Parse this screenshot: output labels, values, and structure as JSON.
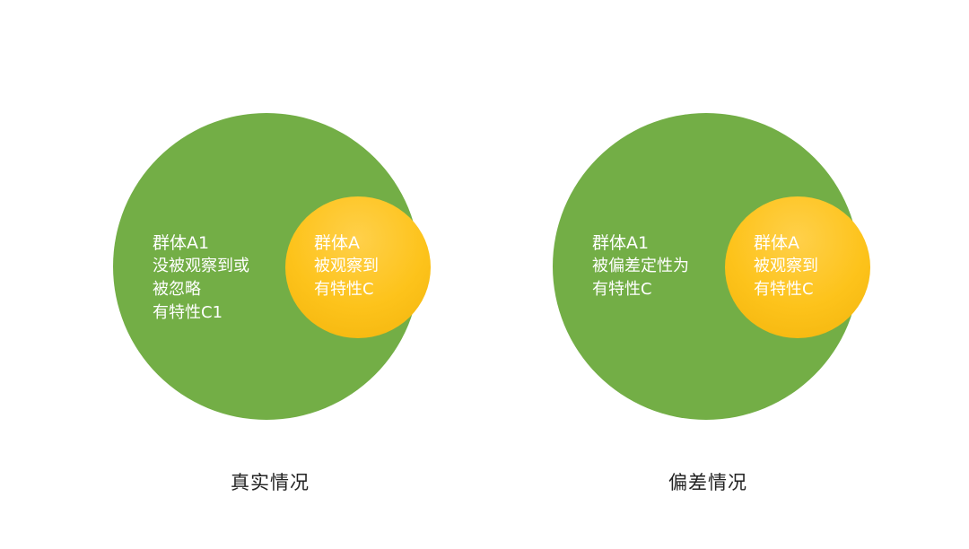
{
  "colors": {
    "outer_group": "#73ae46",
    "inner_group": "#fdc31b",
    "label_text": "#ffffff",
    "caption_text": "#222222"
  },
  "diagrams": [
    {
      "caption": "真实情况",
      "outer_label": [
        "群体A1",
        "没被观察到或",
        "被忽略",
        "有特性C1"
      ],
      "inner_label": [
        "群体A",
        "被观察到",
        "有特性C"
      ]
    },
    {
      "caption": "偏差情况",
      "outer_label": [
        "群体A1",
        "被偏差定性为",
        "有特性C"
      ],
      "inner_label": [
        "群体A",
        "被观察到",
        "有特性C"
      ]
    }
  ]
}
